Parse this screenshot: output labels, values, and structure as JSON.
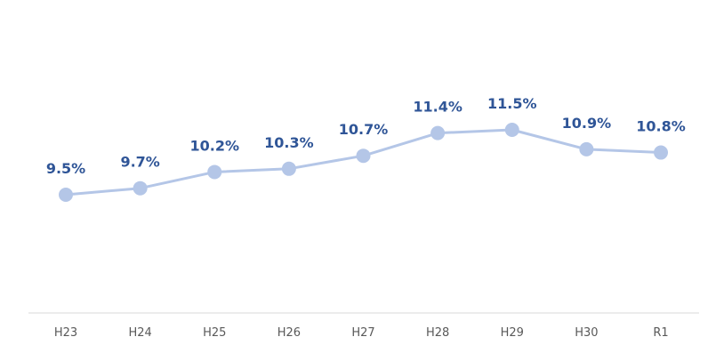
{
  "chart_data": {
    "type": "line",
    "title": "",
    "xlabel": "",
    "ylabel": "",
    "categories": [
      "H23",
      "H24",
      "H25",
      "H26",
      "H27",
      "H28",
      "H29",
      "H30",
      "R1"
    ],
    "series": [
      {
        "values": [
          9.5,
          9.7,
          10.2,
          10.3,
          10.7,
          11.4,
          11.5,
          10.9,
          10.8
        ],
        "labels": [
          "9.5%",
          "9.7%",
          "10.2%",
          "10.3%",
          "10.7%",
          "11.4%",
          "11.5%",
          "10.9%",
          "10.8%"
        ]
      }
    ],
    "ylim": [
      8.0,
      13.0
    ],
    "grid": false,
    "legend": "none"
  },
  "colors": {
    "line": "#b4c6e7",
    "marker": "#b4c6e7",
    "data_label": "#2f5597",
    "tick_label": "#595959",
    "axis": "#d9d9d9"
  }
}
